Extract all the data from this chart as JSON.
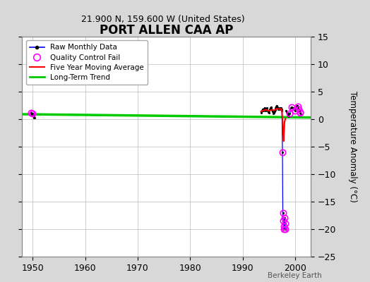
{
  "title": "PORT ALLEN CAA AP",
  "subtitle": "21.900 N, 159.600 W (United States)",
  "ylabel": "Temperature Anomaly (°C)",
  "watermark": "Berkeley Earth",
  "xlim": [
    1948,
    2003
  ],
  "ylim": [
    -25,
    15
  ],
  "yticks": [
    -25,
    -20,
    -15,
    -10,
    -5,
    0,
    5,
    10,
    15
  ],
  "xticks": [
    1950,
    1960,
    1970,
    1980,
    1990,
    2000
  ],
  "bg_color": "#d8d8d8",
  "plot_bg_color": "#ffffff",
  "grid_color": "#bbbbbb",
  "early_x": [
    1949.75,
    1949.83,
    1949.92,
    1950.0,
    1950.08,
    1950.17,
    1950.25,
    1950.33
  ],
  "early_y": [
    1.1,
    0.9,
    0.7,
    1.0,
    0.8,
    0.5,
    0.3,
    0.2
  ],
  "mid_x": [
    1993.5,
    1993.6,
    1993.7,
    1993.8,
    1993.9,
    1994.0,
    1994.1,
    1994.2,
    1994.3,
    1994.4,
    1994.5,
    1994.6,
    1994.7,
    1994.8,
    1994.9,
    1995.0,
    1995.1,
    1995.2,
    1995.3,
    1995.4,
    1995.5,
    1995.6,
    1995.7,
    1995.8,
    1995.9,
    1996.0,
    1996.1,
    1996.2,
    1996.3,
    1996.4,
    1996.5,
    1996.6,
    1996.7,
    1996.8
  ],
  "mid_y": [
    1.2,
    1.4,
    1.6,
    1.8,
    1.5,
    1.7,
    1.9,
    2.1,
    1.8,
    1.6,
    1.8,
    2.0,
    1.7,
    1.5,
    1.3,
    1.2,
    1.5,
    1.8,
    2.0,
    2.2,
    1.9,
    1.7,
    1.4,
    1.2,
    1.0,
    1.1,
    1.4,
    1.7,
    2.0,
    2.3,
    2.5,
    2.2,
    2.0,
    1.8
  ],
  "drop_x": [
    1997.0,
    1997.1,
    1997.2,
    1997.3,
    1997.4,
    1997.5,
    1997.6,
    1997.67,
    1997.75,
    1997.83,
    1997.92,
    1998.0,
    1998.08,
    1998.17
  ],
  "drop_y": [
    2.0,
    1.8,
    1.9,
    2.0,
    1.8,
    1.5,
    -6.0,
    -17.0,
    -18.5,
    -19.5,
    -20.0,
    -18.0,
    -19.0,
    -20.0
  ],
  "late_x": [
    1998.25,
    1998.4,
    1998.5,
    1998.6,
    1998.7,
    1998.8,
    1999.0,
    1999.2,
    1999.4,
    1999.6,
    1999.8,
    2000.0,
    2000.1,
    2000.2,
    2000.3,
    2000.4,
    2000.5,
    2000.6,
    2000.7,
    2000.8,
    2000.9,
    2001.0,
    2001.1
  ],
  "late_y": [
    1.5,
    1.3,
    1.1,
    0.9,
    0.7,
    0.5,
    1.0,
    2.0,
    2.2,
    2.0,
    1.8,
    1.5,
    1.8,
    2.1,
    2.3,
    2.5,
    2.3,
    2.1,
    1.8,
    1.5,
    1.3,
    1.1,
    0.9
  ],
  "qc_x": [
    1949.75,
    1950.0,
    1997.6,
    1997.67,
    1997.75,
    1997.83,
    1997.92,
    1998.0,
    1998.08,
    1998.17,
    1999.0,
    1999.4,
    2000.0,
    2000.5,
    2000.7,
    2000.9,
    2001.0
  ],
  "qc_y": [
    1.1,
    1.0,
    -6.0,
    -17.0,
    -18.5,
    -19.5,
    -20.0,
    -18.0,
    -19.0,
    -20.0,
    1.0,
    2.2,
    1.5,
    2.3,
    1.8,
    1.3,
    1.1
  ],
  "ma_x": [
    1993.5,
    1994.0,
    1994.5,
    1995.0,
    1995.5,
    1996.0,
    1996.5,
    1997.0,
    1997.3,
    1997.5,
    1997.6,
    1997.7,
    1997.83,
    1997.92,
    1998.0,
    1998.17
  ],
  "ma_y": [
    1.4,
    1.6,
    1.7,
    1.5,
    1.7,
    1.6,
    1.9,
    1.8,
    1.9,
    1.6,
    0.0,
    -2.0,
    -4.0,
    -2.0,
    -0.5,
    0.1
  ],
  "trend_x": [
    1948,
    2003
  ],
  "trend_y": [
    0.9,
    0.3
  ],
  "raw_color": "#0000ff",
  "qc_color": "#ff00ff",
  "ma_color": "#ff0000",
  "trend_color": "#00cc00"
}
